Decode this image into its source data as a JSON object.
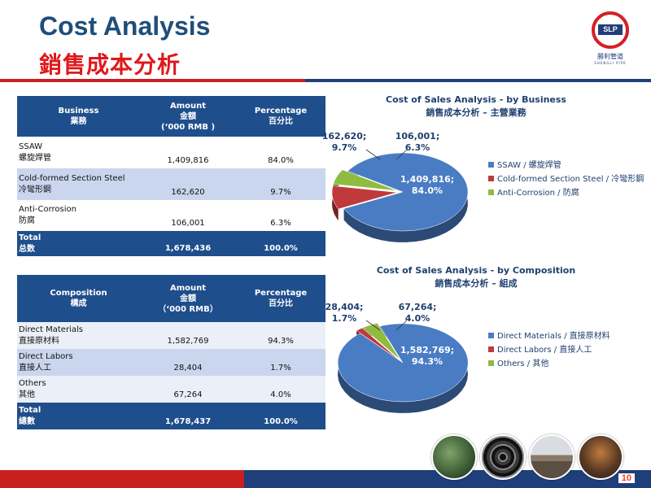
{
  "header": {
    "title_en": "Cost Analysis",
    "title_zh": "銷售成本分析",
    "logo_abbr": "SLP",
    "logo_name": "勝利管道",
    "logo_sub": "SHENGLI PIPE"
  },
  "table_business": {
    "headers": [
      {
        "l1": "Business",
        "l2": "業務",
        "l3": ""
      },
      {
        "l1": "Amount",
        "l2": "金額",
        "l3": "(‘000 RMB )"
      },
      {
        "l1": "Percentage",
        "l2": "百分比",
        "l3": ""
      }
    ],
    "rows": [
      {
        "name_en": "SSAW",
        "name_zh": "螺旋焊管",
        "amount": "1,409,816",
        "pct": "84.0%"
      },
      {
        "name_en": "Cold-formed Section Steel",
        "name_zh": "冷彎形鋼",
        "amount": "162,620",
        "pct": "9.7%"
      },
      {
        "name_en": "Anti-Corrosion",
        "name_zh": "防腐",
        "amount": "106,001",
        "pct": "6.3%"
      },
      {
        "name_en": "Total",
        "name_zh": "总数",
        "amount": "1,678,436",
        "pct": "100.0%"
      }
    ]
  },
  "table_composition": {
    "headers": [
      {
        "l1": "Composition",
        "l2": "構成",
        "l3": ""
      },
      {
        "l1": "Amount",
        "l2": "金額",
        "l3": "（‘000 RMB）"
      },
      {
        "l1": "Percentage",
        "l2": "百分比",
        "l3": ""
      }
    ],
    "rows": [
      {
        "name_en": "Direct Materials",
        "name_zh": "直接原材料",
        "amount": "1,582,769",
        "pct": "94.3%"
      },
      {
        "name_en": "Direct Labors",
        "name_zh": "直接人工",
        "amount": "28,404",
        "pct": "1.7%"
      },
      {
        "name_en": "Others",
        "name_zh": "其他",
        "amount": "67,264",
        "pct": "4.0%"
      },
      {
        "name_en": "Total",
        "name_zh": "總數",
        "amount": "1,678,437",
        "pct": "100.0%"
      }
    ]
  },
  "chart_data": [
    {
      "type": "pie",
      "title": "Cost of Sales Analysis - by Business",
      "subtitle": "銷售成本分析 – 主營業務",
      "categories": [
        "SSAW / 螺旋焊管",
        "Cold-formed Section Steel / 冷彎形鋼",
        "Anti-Corrosion / 防腐"
      ],
      "values": [
        1409816,
        162620,
        106001
      ],
      "data_labels": [
        [
          "1,409,816;",
          "84.0%"
        ],
        [
          "162,620;",
          "9.7%"
        ],
        [
          "106,001;",
          "6.3%"
        ]
      ],
      "colors": [
        "#4a7cc4",
        "#c0393b",
        "#8fbc3f"
      ],
      "legend_position": "right"
    },
    {
      "type": "pie",
      "title": "Cost of Sales Analysis - by Composition",
      "subtitle": "銷售成本分析 – 組成",
      "categories": [
        "Direct Materials / 直接原材料",
        "Direct Labors / 直接人工",
        "Others / 其他"
      ],
      "values": [
        1582769,
        28404,
        67264
      ],
      "data_labels": [
        [
          "1,582,769;",
          "94.3%"
        ],
        [
          "28,404;",
          "1.7%"
        ],
        [
          "67,264;",
          "4.0%"
        ]
      ],
      "colors": [
        "#4a7cc4",
        "#c0393b",
        "#8fbc3f"
      ],
      "legend_position": "right"
    }
  ],
  "footer": {
    "page_number": "10"
  }
}
